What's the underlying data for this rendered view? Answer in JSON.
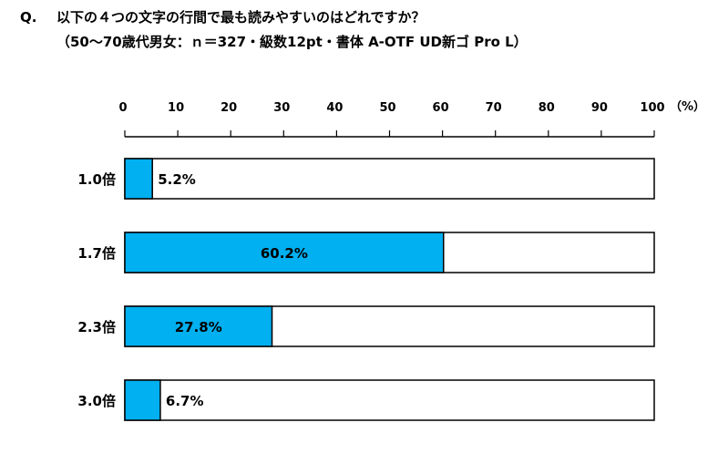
{
  "question": {
    "mark": "Q.",
    "text": "以下の４つの文字の行間で最も読みやすいのはどれですか？",
    "subtext": "（50〜70歳代男女：ｎ＝327・級数12pt・書体 A-OTF UD新ゴ Pro L）"
  },
  "chart_data": {
    "type": "bar",
    "orientation": "horizontal",
    "categories": [
      "1.0倍",
      "1.7倍",
      "2.3倍",
      "3.0倍"
    ],
    "values": [
      5.2,
      60.2,
      27.8,
      6.7
    ],
    "value_labels": [
      "5.2%",
      "60.2%",
      "27.8%",
      "6.7%"
    ],
    "xlim": [
      0,
      100
    ],
    "xticks": [
      0,
      10,
      20,
      30,
      40,
      50,
      60,
      70,
      80,
      90,
      100
    ],
    "unit_label": "（%）",
    "bar_color": "#00b0f0",
    "grid": false
  }
}
